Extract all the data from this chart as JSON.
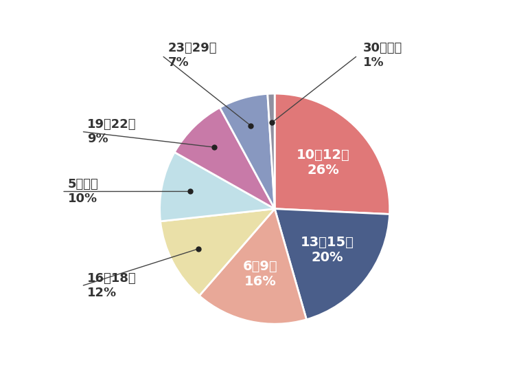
{
  "slices": [
    {
      "label": "10～12歳",
      "pct": 26,
      "color": "#E07878",
      "text_color": "white",
      "inside": true
    },
    {
      "label": "13～15歳",
      "pct": 20,
      "color": "#4A5E8A",
      "text_color": "white",
      "inside": true
    },
    {
      "label": "6～9歳",
      "pct": 16,
      "color": "#E8A898",
      "text_color": "white",
      "inside": true
    },
    {
      "label": "16～18歳",
      "pct": 12,
      "color": "#EAE0A8",
      "text_color": "#333333",
      "inside": false
    },
    {
      "label": "5歳未満",
      "pct": 10,
      "color": "#C0E0E8",
      "text_color": "#333333",
      "inside": false
    },
    {
      "label": "19～22歳",
      "pct": 9,
      "color": "#C87AA8",
      "text_color": "#333333",
      "inside": false
    },
    {
      "label": "23～29歳",
      "pct": 7,
      "color": "#8898C0",
      "text_color": "#333333",
      "inside": false
    },
    {
      "label": "30歳以上",
      "pct": 1,
      "color": "#9090A0",
      "text_color": "#333333",
      "inside": false
    }
  ],
  "background_color": "#ffffff",
  "startangle": 90
}
